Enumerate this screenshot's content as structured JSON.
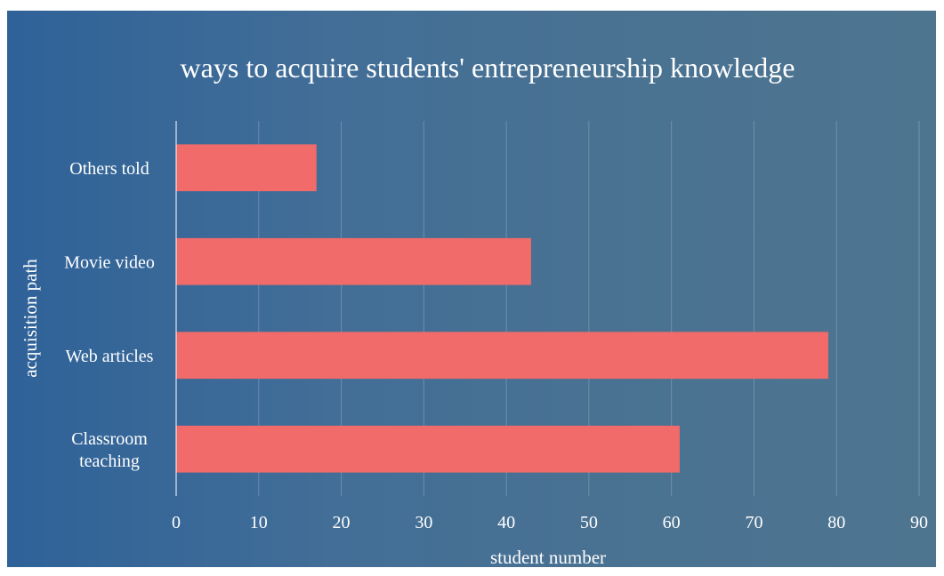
{
  "chart_data": {
    "type": "bar",
    "orientation": "horizontal",
    "title": "ways to acquire students' entrepreneurship knowledge",
    "xlabel": "student number",
    "ylabel": "acquisition path",
    "categories": [
      "Classroom teaching",
      "Web articles",
      "Movie video",
      "Others told"
    ],
    "category_lines": [
      [
        "Classroom",
        "teaching"
      ],
      [
        "Web articles"
      ],
      [
        "Movie video"
      ],
      [
        "Others told"
      ]
    ],
    "values": [
      61,
      79,
      43,
      17
    ],
    "xlim": [
      0,
      90
    ],
    "xticks": [
      "0",
      "10",
      "20",
      "30",
      "40",
      "50",
      "60",
      "70",
      "80",
      "90"
    ],
    "grid": true,
    "legend": "none",
    "colors": {
      "bar": "#f06b69",
      "background_start": "#2f6299",
      "background_end": "#4e7590",
      "text": "#ffffff"
    }
  }
}
